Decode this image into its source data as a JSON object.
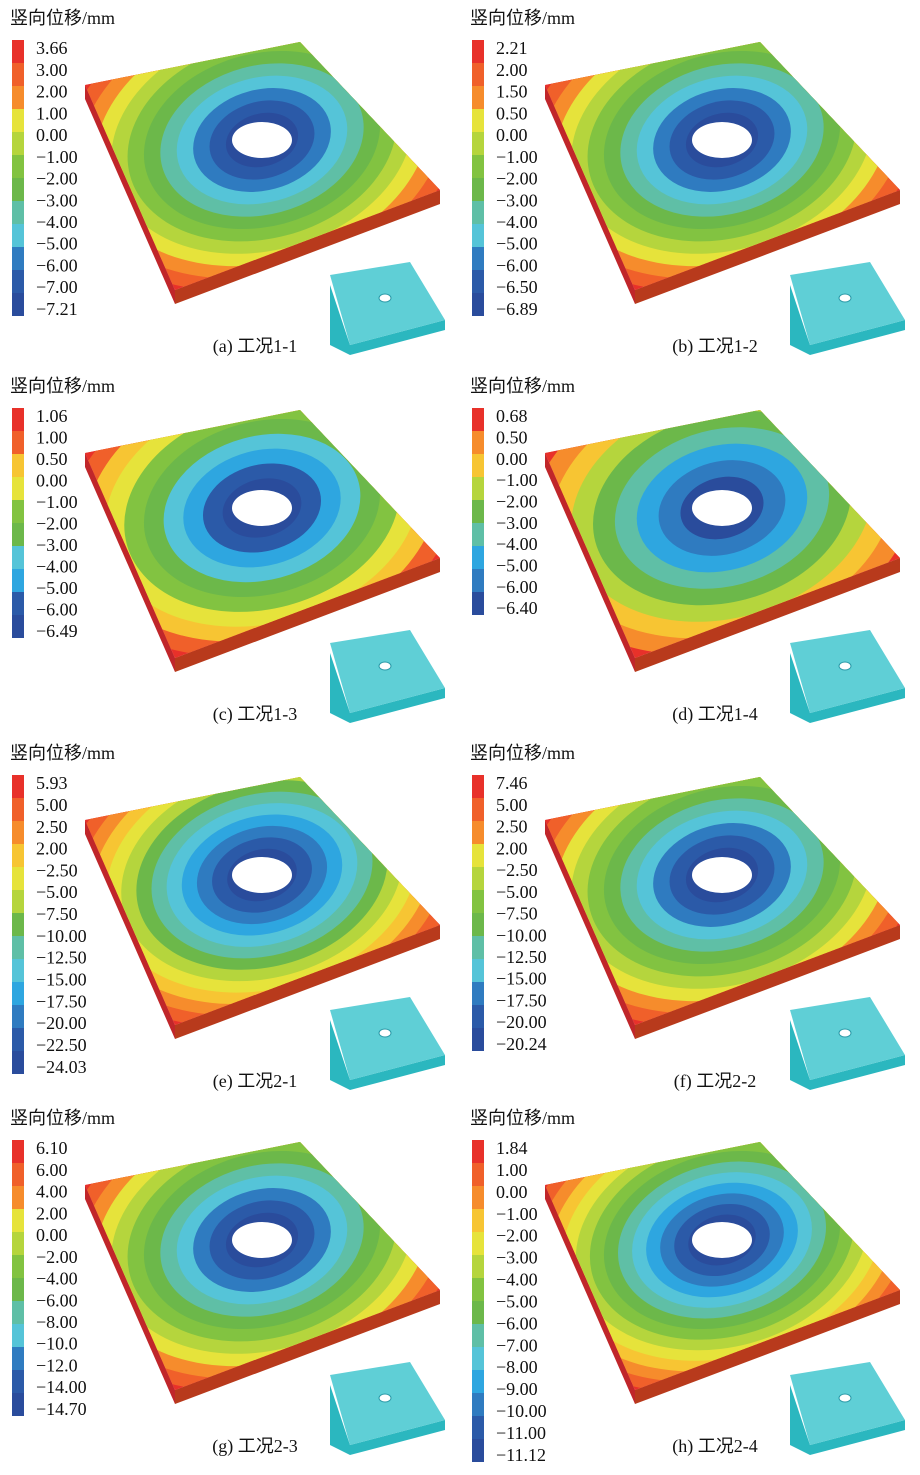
{
  "panels": [
    {
      "legend_title": "竖向位移/mm",
      "legend": [
        "3.66",
        "3.00",
        "2.00",
        "1.00",
        "0.00",
        "−1.00",
        "−2.00",
        "−3.00",
        "−4.00",
        "−5.00",
        "−6.00",
        "−7.00",
        "−7.21"
      ],
      "caption": "(a) 工况1-1"
    },
    {
      "legend_title": "竖向位移/mm",
      "legend": [
        "2.21",
        "2.00",
        "1.50",
        "0.50",
        "0.00",
        "−1.00",
        "−2.00",
        "−3.00",
        "−4.00",
        "−5.00",
        "−6.00",
        "−6.50",
        "−6.89"
      ],
      "caption": "(b) 工况1-2"
    },
    {
      "legend_title": "竖向位移/mm",
      "legend": [
        "1.06",
        "1.00",
        "0.50",
        "0.00",
        "−1.00",
        "−2.00",
        "−3.00",
        "−4.00",
        "−5.00",
        "−6.00",
        "−6.49"
      ],
      "caption": "(c) 工况1-3"
    },
    {
      "legend_title": "竖向位移/mm",
      "legend": [
        "0.68",
        "0.50",
        "0.00",
        "−1.00",
        "−2.00",
        "−3.00",
        "−4.00",
        "−5.00",
        "−6.00",
        "−6.40"
      ],
      "caption": "(d) 工况1-4"
    },
    {
      "legend_title": "竖向位移/mm",
      "legend": [
        "5.93",
        "5.00",
        "2.50",
        "2.00",
        "−2.50",
        "−5.00",
        "−7.50",
        "−10.00",
        "−12.50",
        "−15.00",
        "−17.50",
        "−20.00",
        "−22.50",
        "−24.03"
      ],
      "caption": "(e) 工况2-1"
    },
    {
      "legend_title": "竖向位移/mm",
      "legend": [
        "7.46",
        "5.00",
        "2.50",
        "2.00",
        "−2.50",
        "−5.00",
        "−7.50",
        "−10.00",
        "−12.50",
        "−15.00",
        "−17.50",
        "−20.00",
        "−20.24"
      ],
      "caption": "(f) 工况2-2"
    },
    {
      "legend_title": "竖向位移/mm",
      "legend": [
        "6.10",
        "6.00",
        "4.00",
        "2.00",
        "0.00",
        "−2.00",
        "−4.00",
        "−6.00",
        "−8.00",
        "−10.0",
        "−12.0",
        "−14.00",
        "−14.70"
      ],
      "caption": "(g) 工况2-3"
    },
    {
      "legend_title": "竖向位移/mm",
      "legend": [
        "1.84",
        "1.00",
        "0.00",
        "−1.00",
        "−2.00",
        "−3.00",
        "−4.00",
        "−5.00",
        "−6.00",
        "−7.00",
        "−8.00",
        "−9.00",
        "−10.00",
        "−11.00",
        "−11.12"
      ],
      "caption": "(h) 工况2-4"
    }
  ]
}
